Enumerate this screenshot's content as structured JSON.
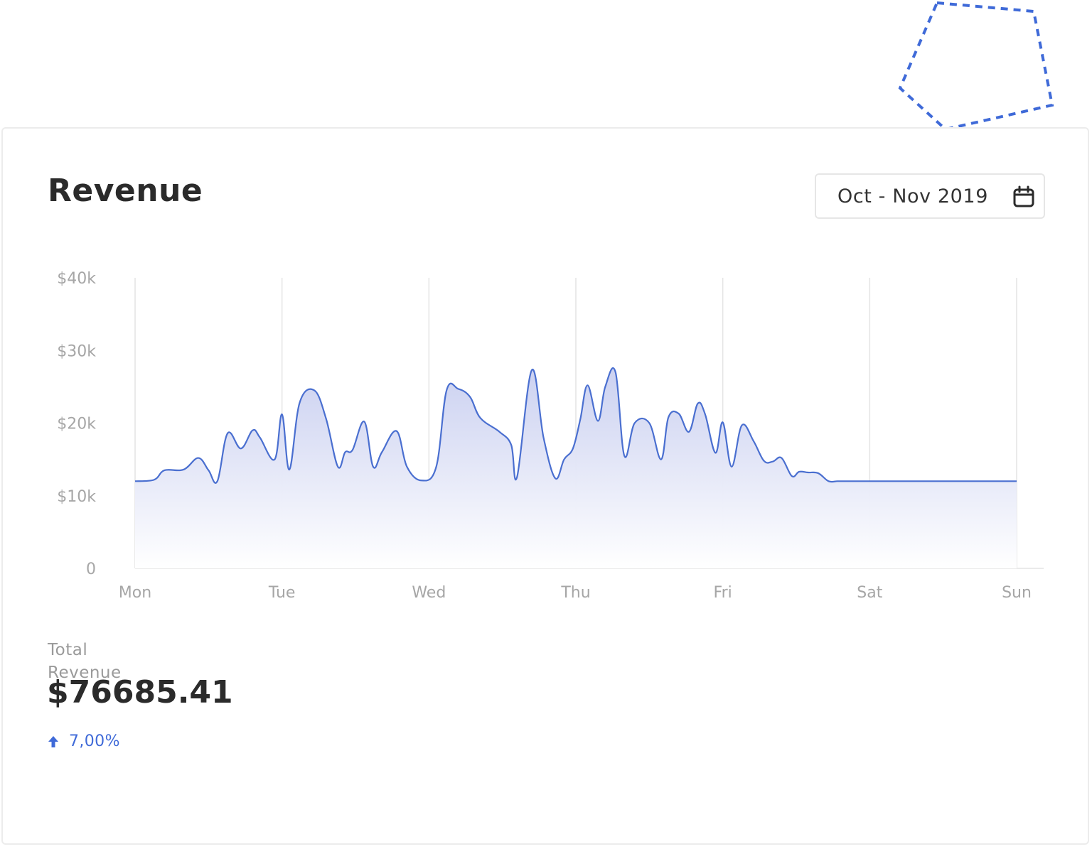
{
  "card": {
    "title": "Revenue",
    "date_range": "Oct - Nov 2019"
  },
  "icons": {
    "calendar": "calendar-icon",
    "trend": "arrow-up-icon",
    "decoration": "dashed-pentagon-outline"
  },
  "colors": {
    "accent": "#3f6ad8",
    "line": "#4a6fd0",
    "fill_top": "#c9cff0",
    "fill_bottom": "#ffffff",
    "grid": "#e4e4e4",
    "text_muted": "#a6a6a6",
    "text_dark": "#2b2b2b"
  },
  "summary": {
    "total_label": "Total Revenue",
    "total_value": "$76685.41",
    "change": "7,00%",
    "change_direction": "up"
  },
  "chart_data": {
    "type": "area",
    "title": "",
    "xlabel": "",
    "ylabel": "",
    "categories": [
      "Mon",
      "Tue",
      "Wed",
      "Thu",
      "Fri",
      "Sat",
      "Sun"
    ],
    "y_ticks": [
      "0",
      "$10k",
      "$20k",
      "$30k",
      "$40k"
    ],
    "ylim": [
      0,
      40000
    ],
    "grid": "vertical",
    "legend": "none",
    "x": [
      0,
      0.13,
      0.2,
      0.33,
      0.43,
      0.5,
      0.56,
      0.63,
      0.72,
      0.8,
      0.85,
      0.95,
      1.0,
      1.05,
      1.12,
      1.22,
      1.3,
      1.38,
      1.43,
      1.48,
      1.56,
      1.62,
      1.68,
      1.78,
      1.85,
      1.95,
      2.05,
      2.12,
      2.2,
      2.28,
      2.35,
      2.48,
      2.56,
      2.6,
      2.7,
      2.78,
      2.86,
      2.92,
      2.98,
      3.03,
      3.08,
      3.15,
      3.2,
      3.27,
      3.33,
      3.4,
      3.5,
      3.58,
      3.63,
      3.7,
      3.77,
      3.83,
      3.88,
      3.95,
      4.0,
      4.06,
      4.13,
      4.21,
      4.28,
      4.34,
      4.4,
      4.47,
      4.52,
      4.58,
      4.65,
      4.72,
      4.78,
      4.83,
      4.88,
      4.95,
      5.02,
      5.08,
      5.13,
      5.17,
      5.25,
      5.33,
      5.45,
      5.52,
      5.6,
      5.7,
      5.8,
      6.0
    ],
    "values": [
      12000,
      12200,
      13500,
      13600,
      15200,
      13500,
      12000,
      18600,
      16500,
      19000,
      18000,
      15000,
      21200,
      13600,
      22800,
      24500,
      20600,
      14000,
      16000,
      16300,
      20200,
      14000,
      16000,
      18900,
      14000,
      12100,
      14000,
      24500,
      24700,
      23600,
      20700,
      18800,
      17000,
      12600,
      27300,
      18000,
      12400,
      15000,
      16500,
      20500,
      25200,
      20300,
      25000,
      27000,
      15500,
      20000,
      20000,
      15000,
      20800,
      21300,
      18800,
      22700,
      21200,
      15900,
      20100,
      14000,
      19700,
      17500,
      14800,
      14700,
      15200,
      12700,
      13300,
      13200,
      13100,
      12000,
      12000,
      12000,
      12000,
      12000,
      12000,
      12000,
      12000,
      12000,
      12000,
      12000,
      12000,
      12000,
      12000,
      12000,
      12000,
      12000
    ]
  }
}
